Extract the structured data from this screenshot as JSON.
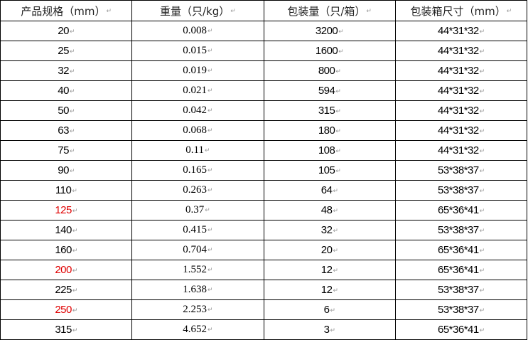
{
  "headers": [
    "产品规格（mm）",
    "重量（只/kg）",
    "包装量（只/箱）",
    "包装箱尺寸（mm）"
  ],
  "highlight_color": "#e00000",
  "rows": [
    {
      "size": "20",
      "weight": "0.008",
      "qty": "3200",
      "box": "44*31*32",
      "highlight": false
    },
    {
      "size": "25",
      "weight": "0.015",
      "qty": "1600",
      "box": "44*31*32",
      "highlight": false
    },
    {
      "size": "32",
      "weight": "0.019",
      "qty": "800",
      "box": "44*31*32",
      "highlight": false
    },
    {
      "size": "40",
      "weight": "0.021",
      "qty": "594",
      "box": "44*31*32",
      "highlight": false
    },
    {
      "size": "50",
      "weight": "0.042",
      "qty": "315",
      "box": "44*31*32",
      "highlight": false
    },
    {
      "size": "63",
      "weight": "0.068",
      "qty": "180",
      "box": "44*31*32",
      "highlight": false
    },
    {
      "size": "75",
      "weight": "0.11",
      "qty": "108",
      "box": "44*31*32",
      "highlight": false
    },
    {
      "size": "90",
      "weight": "0.165",
      "qty": "105",
      "box": "53*38*37",
      "highlight": false
    },
    {
      "size": "110",
      "weight": "0.263",
      "qty": "64",
      "box": "53*38*37",
      "highlight": false
    },
    {
      "size": "125",
      "weight": "0.37",
      "qty": "48",
      "box": "65*36*41",
      "highlight": true
    },
    {
      "size": "140",
      "weight": "0.415",
      "qty": "32",
      "box": "53*38*37",
      "highlight": false
    },
    {
      "size": "160",
      "weight": "0.704",
      "qty": "20",
      "box": "65*36*41",
      "highlight": false
    },
    {
      "size": "200",
      "weight": "1.552",
      "qty": "12",
      "box": "65*36*41",
      "highlight": true
    },
    {
      "size": "225",
      "weight": "1.638",
      "qty": "12",
      "box": "53*38*37",
      "highlight": false
    },
    {
      "size": "250",
      "weight": "2.253",
      "qty": "6",
      "box": "53*38*37",
      "highlight": true
    },
    {
      "size": "315",
      "weight": "4.652",
      "qty": "3",
      "box": "65*36*41",
      "highlight": false
    }
  ]
}
